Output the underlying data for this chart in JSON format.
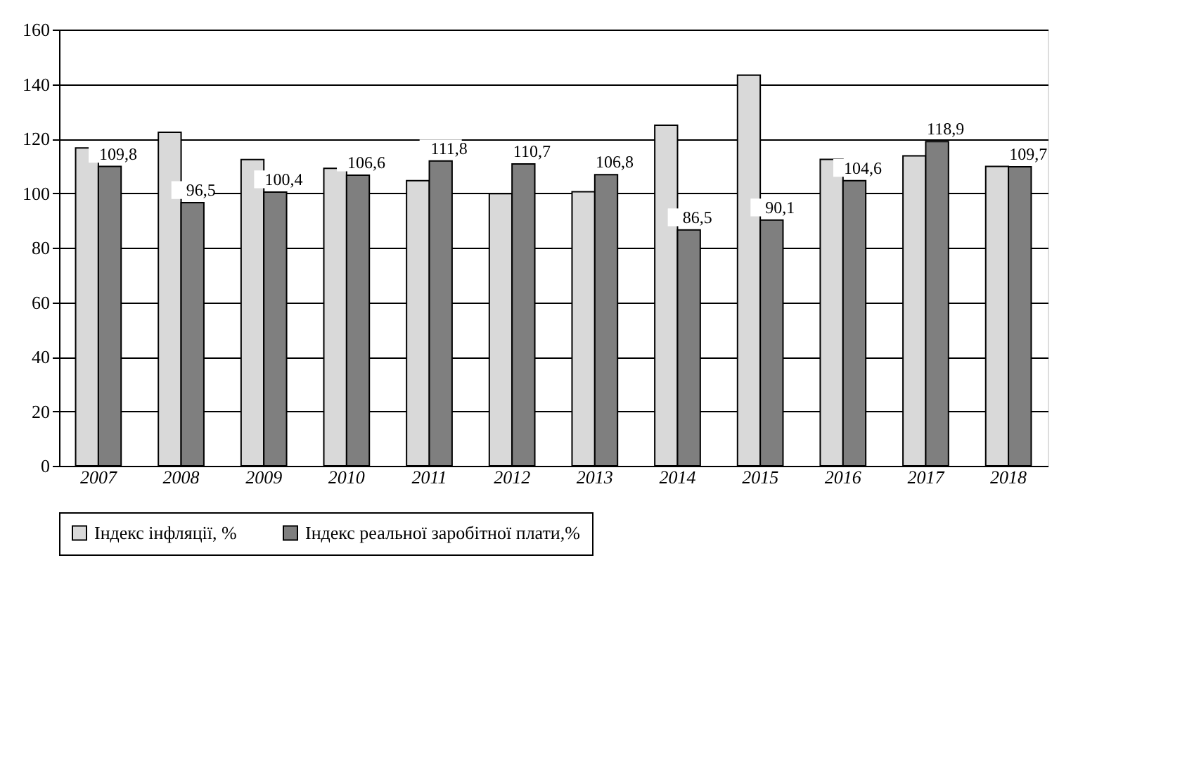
{
  "chart_data": {
    "type": "bar",
    "categories": [
      "2007",
      "2008",
      "2009",
      "2010",
      "2011",
      "2012",
      "2013",
      "2014",
      "2015",
      "2016",
      "2017",
      "2018"
    ],
    "series": [
      {
        "name": "Індекс інфляції, %",
        "color": "#d9d9d9",
        "values": [
          116.6,
          122.3,
          112.3,
          109.1,
          104.6,
          99.8,
          100.5,
          124.9,
          143.3,
          112.4,
          113.7,
          109.8
        ]
      },
      {
        "name": "Індекс реальної заробітної плати,%",
        "color": "#7f7f7f",
        "values": [
          109.8,
          96.5,
          100.4,
          106.6,
          111.8,
          110.7,
          106.8,
          86.5,
          90.1,
          104.6,
          118.9,
          109.7
        ],
        "value_labels": [
          "109,8",
          "96,5",
          "100,4",
          "106,6",
          "111,8",
          "110,7",
          "106,8",
          "86,5",
          "90,1",
          "104,6",
          "118,9",
          "109,7"
        ]
      }
    ],
    "ylim": [
      0,
      160
    ],
    "yticks": [
      0,
      20,
      40,
      60,
      80,
      100,
      120,
      140,
      160
    ],
    "grid": "y",
    "legend": "bottom"
  }
}
